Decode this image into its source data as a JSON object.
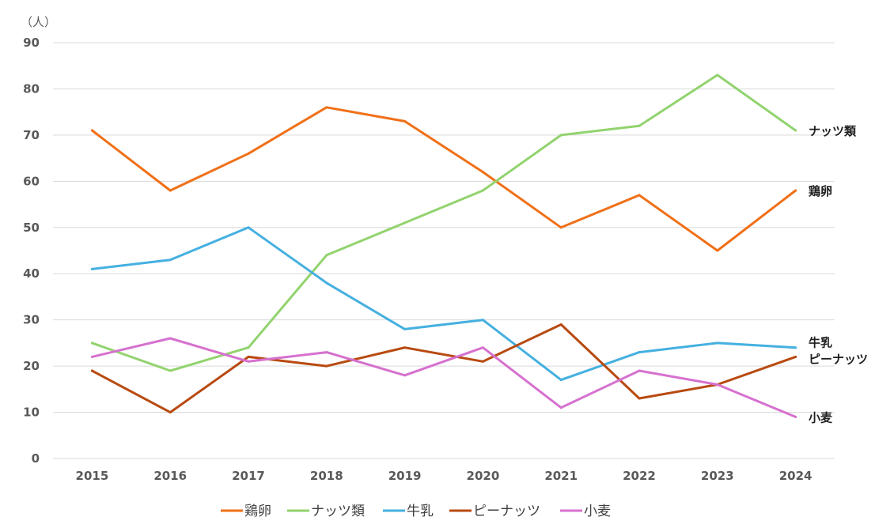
{
  "chart_data": {
    "type": "line",
    "unit_label": "（人）",
    "x": [
      "2015",
      "2016",
      "2017",
      "2018",
      "2019",
      "2020",
      "2021",
      "2022",
      "2023",
      "2024"
    ],
    "ylim": [
      0,
      90
    ],
    "yticks": [
      0,
      10,
      20,
      30,
      40,
      50,
      60,
      70,
      80,
      90
    ],
    "grid": true,
    "legend_position": "bottom",
    "series": [
      {
        "name": "鶏卵",
        "color": "#f07018",
        "values": [
          71,
          58,
          66,
          76,
          73,
          62,
          50,
          57,
          45,
          58
        ]
      },
      {
        "name": "ナッツ類",
        "color": "#92d36e",
        "values": [
          25,
          19,
          24,
          44,
          51,
          58,
          70,
          72,
          83,
          71
        ]
      },
      {
        "name": "牛乳",
        "color": "#45b0e0",
        "values": [
          41,
          43,
          50,
          38,
          28,
          30,
          17,
          23,
          25,
          24
        ]
      },
      {
        "name": "ピーナッツ",
        "color": "#b84a10",
        "values": [
          19,
          10,
          22,
          20,
          24,
          21,
          29,
          13,
          16,
          22
        ]
      },
      {
        "name": "小麦",
        "color": "#d671cf",
        "values": [
          22,
          26,
          21,
          23,
          18,
          24,
          11,
          19,
          16,
          9
        ]
      }
    ]
  }
}
